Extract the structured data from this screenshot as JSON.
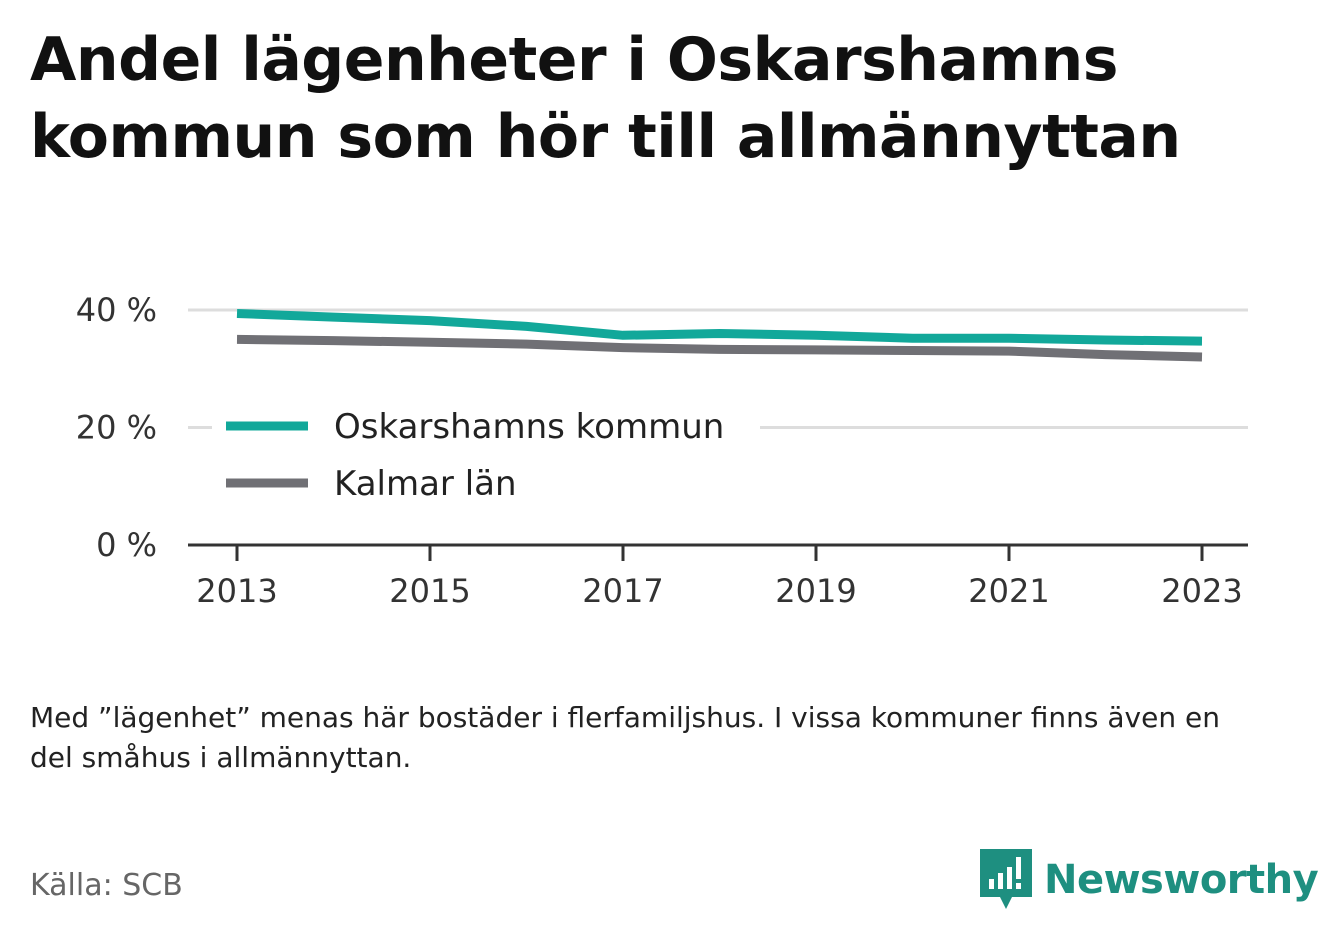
{
  "title_lines": [
    "Andel lägenheter i Oskarshamns",
    "kommun som hör till allmännyttan"
  ],
  "chart_data": {
    "type": "line",
    "x": [
      2013,
      2014,
      2015,
      2016,
      2017,
      2018,
      2019,
      2020,
      2021,
      2022,
      2023
    ],
    "x_tick_labels": [
      "2013",
      "2015",
      "2017",
      "2019",
      "2021",
      "2023"
    ],
    "x_tick_values": [
      2013,
      2015,
      2017,
      2019,
      2021,
      2023
    ],
    "y_tick_labels": [
      "0 %",
      "20 %",
      "40 %"
    ],
    "y_tick_values": [
      0,
      20,
      40
    ],
    "ylim": [
      0,
      40
    ],
    "grid": true,
    "legend_position": "left",
    "series": [
      {
        "name": "Oskarshamns kommun",
        "color": "#12a89a",
        "values": [
          39.4,
          38.8,
          38.2,
          37.2,
          35.7,
          36.0,
          35.7,
          35.2,
          35.2,
          34.9,
          34.7
        ]
      },
      {
        "name": "Kalmar län",
        "color": "#707075",
        "values": [
          35.0,
          34.8,
          34.5,
          34.2,
          33.6,
          33.3,
          33.2,
          33.1,
          33.0,
          32.4,
          32.0
        ]
      }
    ]
  },
  "note": "Med ”lägenhet” menas här bostäder i flerfamiljshus. I vissa kommuner finns även en del småhus i allmännyttan.",
  "source": "Källa: SCB",
  "brand": {
    "name": "Newsworthy",
    "color": "#1e8f80",
    "icon": "newsworthy-logo-icon"
  }
}
